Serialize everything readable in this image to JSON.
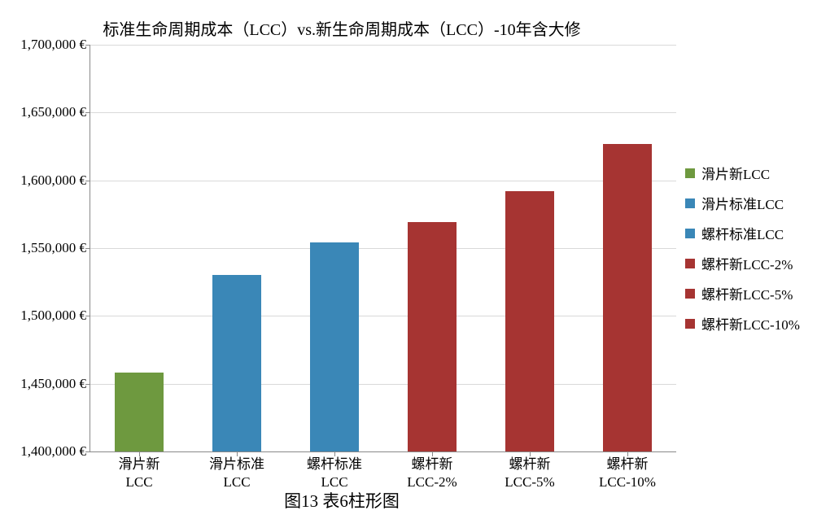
{
  "chart": {
    "type": "bar",
    "title": "标准生命周期成本（LCC）vs.新生命周期成本（LCC）-10年含大修",
    "title_fontsize": 20,
    "caption": "图13 表6柱形图",
    "caption_fontsize": 21,
    "background_color": "#ffffff",
    "grid_color": "#d9d9d9",
    "axis_color": "#888888",
    "y_axis": {
      "min": 1400000,
      "max": 1700000,
      "tick_step": 50000,
      "tick_labels": [
        "1,400,000 €",
        "1,450,000 €",
        "1,500,000 €",
        "1,550,000 €",
        "1,600,000 €",
        "1,650,000 €",
        "1,700,000 €"
      ],
      "label_fontsize": 17
    },
    "x_axis": {
      "label_fontsize": 17
    },
    "bar_width_ratio": 0.5,
    "bars": [
      {
        "label_line1": "滑片新",
        "label_line2": "LCC",
        "value": 1458000,
        "color": "#6e993f"
      },
      {
        "label_line1": "滑片标准",
        "label_line2": "LCC",
        "value": 1530000,
        "color": "#3a87b7"
      },
      {
        "label_line1": "螺杆标准",
        "label_line2": "LCC",
        "value": 1554000,
        "color": "#3a87b7"
      },
      {
        "label_line1": "螺杆新",
        "label_line2": "LCC-2%",
        "value": 1569000,
        "color": "#a63432"
      },
      {
        "label_line1": "螺杆新",
        "label_line2": "LCC-5%",
        "value": 1592000,
        "color": "#a63432"
      },
      {
        "label_line1": "螺杆新",
        "label_line2": "LCC-10%",
        "value": 1627000,
        "color": "#a63432"
      }
    ],
    "legend": {
      "items": [
        {
          "label": "滑片新LCC",
          "color": "#6e993f"
        },
        {
          "label": "滑片标准LCC",
          "color": "#3a87b7"
        },
        {
          "label": "螺杆标准LCC",
          "color": "#3a87b7"
        },
        {
          "label": "螺杆新LCC-2%",
          "color": "#a63432"
        },
        {
          "label": "螺杆新LCC-5%",
          "color": "#a63432"
        },
        {
          "label": "螺杆新LCC-10%",
          "color": "#a63432"
        }
      ],
      "fontsize": 17
    }
  }
}
